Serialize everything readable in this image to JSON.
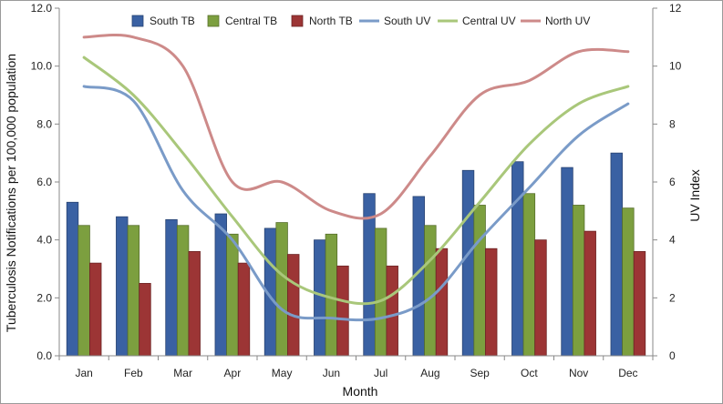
{
  "chart_data": {
    "type": "bar",
    "title": "",
    "xlabel": "Month",
    "ylabel": "Tuberculosis Notifications per 100,000 population",
    "y2label": "UV  Index",
    "ylim": [
      0,
      12
    ],
    "y2lim": [
      0,
      12
    ],
    "yticks": [
      "0.0",
      "2.0",
      "4.0",
      "6.0",
      "8.0",
      "10.0",
      "12.0"
    ],
    "y2ticks": [
      "0",
      "2",
      "4",
      "6",
      "8",
      "10",
      "12"
    ],
    "grid": false,
    "legend_position": "top",
    "categories": [
      "Jan",
      "Feb",
      "Mar",
      "Apr",
      "May",
      "Jun",
      "Jul",
      "Aug",
      "Sep",
      "Oct",
      "Nov",
      "Dec"
    ],
    "series": [
      {
        "name": "South TB",
        "kind": "bar",
        "axis": "left",
        "color": "#3a61a3",
        "values": [
          5.3,
          4.8,
          4.7,
          4.9,
          4.4,
          4.0,
          5.6,
          5.5,
          6.4,
          6.7,
          6.5,
          7.0
        ]
      },
      {
        "name": "Central TB",
        "kind": "bar",
        "axis": "left",
        "color": "#7c9f3f",
        "values": [
          4.5,
          4.5,
          4.5,
          4.2,
          4.6,
          4.2,
          4.4,
          4.5,
          5.2,
          5.6,
          5.2,
          5.1
        ]
      },
      {
        "name": "North TB",
        "kind": "bar",
        "axis": "left",
        "color": "#9c3535",
        "values": [
          3.2,
          2.5,
          3.6,
          3.2,
          3.5,
          3.1,
          3.1,
          3.7,
          3.7,
          4.0,
          4.3,
          3.6
        ]
      },
      {
        "name": "South UV",
        "kind": "line",
        "axis": "right",
        "color": "#7a9bc8",
        "values": [
          9.3,
          8.8,
          5.7,
          4.0,
          1.6,
          1.3,
          1.3,
          2.0,
          4.0,
          5.8,
          7.6,
          8.7
        ]
      },
      {
        "name": "Central UV",
        "kind": "line",
        "axis": "right",
        "color": "#a9c77a",
        "values": [
          10.3,
          9.0,
          7.0,
          4.8,
          2.8,
          2.0,
          1.9,
          3.3,
          5.3,
          7.3,
          8.7,
          9.3
        ]
      },
      {
        "name": "North UV",
        "kind": "line",
        "axis": "right",
        "color": "#cd8a89",
        "values": [
          11.0,
          11.0,
          10.0,
          6.0,
          6.0,
          5.0,
          4.9,
          6.9,
          9.0,
          9.5,
          10.5,
          10.5
        ]
      }
    ]
  }
}
